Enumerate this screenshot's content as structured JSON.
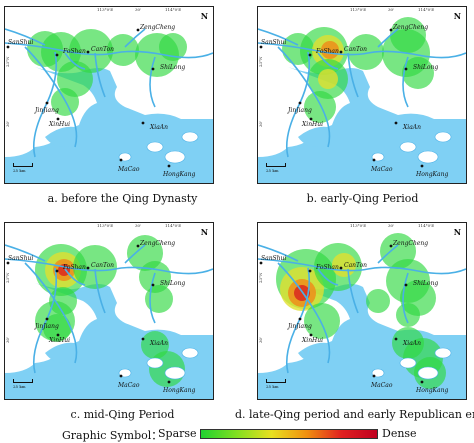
{
  "panels": [
    {
      "caption": "a. before the Qing Dynasty",
      "places": [
        "SanShui",
        "FoShan",
        "CanTon",
        "ZengCheng",
        "ShiLong",
        "JinJiang",
        "XinHui",
        "XiaAn",
        "MaCao",
        "HongKang"
      ]
    },
    {
      "caption": "b. early-Qing Period",
      "places": [
        "SanShui",
        "FoShan",
        "CanTon",
        "ZengCheng",
        "ShiLong",
        "JinJiang",
        "XinHui",
        "XiaAn",
        "MaCao",
        "HongKang"
      ]
    },
    {
      "caption": "c. mid-Qing Period",
      "places": [
        "SanShui",
        "FoShan",
        "CanTon",
        "ZengCheng",
        "ShiLong",
        "JinJiang",
        "XinHui",
        "XiaAn",
        "MaCao",
        "HongKang"
      ]
    },
    {
      "caption": "d. late-Qing period and early Republican era",
      "places": [
        "SanShui",
        "FoShan",
        "CanTon",
        "ZengCheng",
        "ShiLong",
        "JinJiang",
        "XinHui",
        "XiaAn",
        "MaCao",
        "HongKang"
      ]
    }
  ],
  "coords": {
    "lon1": "113°0'E",
    "lon2": "30'",
    "lon3": "114°0'E",
    "lat1": "23°N",
    "lat2": "30'"
  },
  "north": "N",
  "scale": "25 km",
  "legend": {
    "title": "Graphic Symbol：",
    "low": "Sparse",
    "high": "Dense"
  },
  "colors": {
    "water": "#7fd0f4",
    "land": "#ffffff",
    "river": "#5ab8e8",
    "sparse": "#20d030",
    "mid": "#e8e020",
    "dense": "#d01020"
  }
}
